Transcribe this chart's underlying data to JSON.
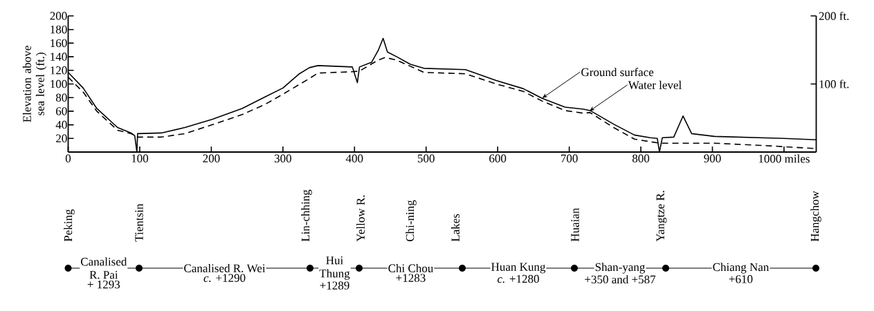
{
  "chart_data": {
    "type": "line",
    "ylabel": "Elevation above sea level (ft.)",
    "xlim": [
      0,
      1045
    ],
    "xticks": [
      0,
      100,
      200,
      300,
      400,
      500,
      600,
      700,
      800,
      900,
      {
        "value": 1000,
        "label": "1000 miles"
      }
    ],
    "ylim": [
      0,
      200
    ],
    "yticks": [
      20,
      40,
      60,
      80,
      100,
      120,
      140,
      160,
      180,
      200
    ],
    "y2lim": [
      0,
      200
    ],
    "y2ticks": [
      {
        "value": 100,
        "label": "100 ft."
      },
      {
        "value": 200,
        "label": "200 ft."
      }
    ],
    "marker": "none",
    "series": [
      {
        "color": "#000000",
        "line_style": "solid",
        "x": [
          0,
          21,
          40,
          69,
          88,
          93,
          96,
          97,
          130,
          163,
          201,
          243,
          275,
          300,
          323,
          337,
          349,
          397,
          404,
          407,
          424,
          433,
          440,
          446,
          459,
          478,
          497,
          555,
          598,
          636,
          662,
          694,
          720,
          729,
          762,
          791,
          813,
          823,
          826,
          830,
          846,
          859,
          871,
          903,
          999,
          1045
        ],
        "values": [
          117,
          94,
          64,
          36,
          28,
          24,
          0,
          27,
          28,
          36,
          48,
          64,
          81,
          94,
          115,
          124,
          127,
          125,
          102,
          125,
          132,
          149,
          167,
          147,
          140,
          129,
          123,
          121,
          105,
          93,
          79,
          66,
          63,
          61,
          41,
          25,
          21,
          20,
          0,
          21,
          22,
          53,
          27,
          23,
          20,
          18
        ]
      },
      {
        "color": "#000000",
        "line_style": "dashed",
        "x": [
          0,
          21,
          40,
          69,
          88,
          97,
          130,
          163,
          201,
          243,
          275,
          300,
          337,
          349,
          397,
          407,
          433,
          443,
          459,
          497,
          555,
          598,
          636,
          662,
          694,
          720,
          729,
          762,
          791,
          826,
          903,
          982,
          1045
        ],
        "values": [
          110,
          88,
          60,
          32,
          27,
          22,
          22,
          27,
          40,
          55,
          70,
          85,
          108,
          116,
          118,
          119,
          135,
          139,
          135,
          117,
          115,
          100,
          89,
          75,
          61,
          57,
          58,
          36,
          19,
          13,
          13,
          9,
          5
        ]
      }
    ],
    "annotations": [
      {
        "text": "Ground surface",
        "x": 662,
        "y": 79
      },
      {
        "text": "Water level",
        "x": 728,
        "y": 60
      },
      "Peking",
      "Tientsin",
      "Lin-chhing",
      "Yellow R.",
      "Chi-ning",
      "Lakes",
      "Huaian",
      "Yangtze R.",
      "Hangchow",
      "Canalised R. Pai",
      "+ 1293",
      "Canalised R. Wei",
      "*c.* +1290",
      "Hui Thung",
      "+1289",
      "Chi Chou",
      "+1283",
      "Huan Kung",
      "*c.* +1280",
      "Shan-yang",
      "+350 and +587",
      "Chiang Nan",
      "+610"
    ]
  }
}
